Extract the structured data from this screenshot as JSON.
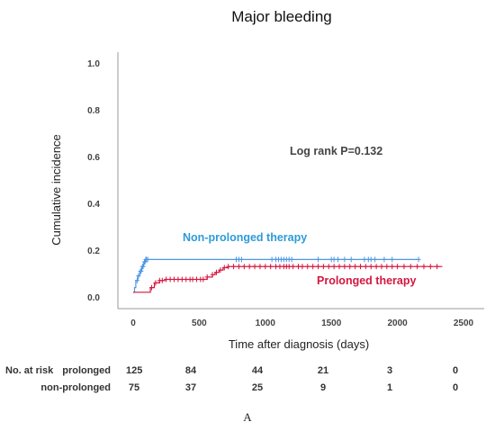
{
  "chart_data": {
    "type": "line",
    "title": "Major bleeding",
    "xlabel": "Time after diagnosis (days)",
    "ylabel": "Cumulative incidence",
    "xlim": [
      -50,
      2700
    ],
    "ylim": [
      -0.02,
      1.05
    ],
    "x_ticks": [
      0,
      500,
      1000,
      1500,
      2000,
      2500
    ],
    "y_ticks": [
      "0.0",
      "0.2",
      "0.4",
      "0.6",
      "0.8",
      "1.0"
    ],
    "y_tick_values": [
      0.0,
      0.2,
      0.4,
      0.6,
      0.8,
      1.0
    ],
    "annotation": "Log rank P=0.132",
    "grid": false,
    "series": [
      {
        "name": "Non-prolonged therapy",
        "color": "#4d97e3",
        "label_color": "#2f9bd9",
        "step_x": [
          0,
          10,
          20,
          35,
          50,
          65,
          80,
          95,
          2160
        ],
        "step_y": [
          0.02,
          0.04,
          0.07,
          0.09,
          0.11,
          0.13,
          0.15,
          0.16,
          0.16
        ],
        "censored_x": [
          30,
          40,
          55,
          60,
          70,
          75,
          85,
          90,
          95,
          100,
          110,
          780,
          800,
          820,
          1050,
          1080,
          1100,
          1120,
          1140,
          1160,
          1180,
          1200,
          1400,
          1500,
          1520,
          1550,
          1600,
          1650,
          1750,
          1780,
          1800,
          1830,
          1900,
          1960,
          2160
        ]
      },
      {
        "name": "Prolonged therapy",
        "color": "#d4173f",
        "label_color": "#d4173f",
        "step_x": [
          0,
          100,
          130,
          160,
          200,
          240,
          560,
          600,
          620,
          650,
          680,
          720,
          760,
          2340
        ],
        "step_y": [
          0.02,
          0.02,
          0.04,
          0.06,
          0.07,
          0.075,
          0.085,
          0.095,
          0.105,
          0.115,
          0.125,
          0.13,
          0.13,
          0.13
        ],
        "censored_x": [
          140,
          170,
          200,
          220,
          250,
          280,
          310,
          340,
          370,
          400,
          430,
          450,
          480,
          510,
          530,
          560,
          600,
          630,
          660,
          690,
          720,
          760,
          800,
          840,
          880,
          920,
          960,
          1000,
          1040,
          1080,
          1110,
          1140,
          1160,
          1180,
          1210,
          1250,
          1280,
          1320,
          1360,
          1400,
          1440,
          1480,
          1520,
          1560,
          1600,
          1640,
          1680,
          1720,
          1760,
          1800,
          1840,
          1880,
          1920,
          1960,
          2000,
          2050,
          2100,
          2150,
          2200,
          2250,
          2300
        ]
      }
    ]
  },
  "risk_table": {
    "title": "No. at risk",
    "rows": [
      {
        "label": "prolonged",
        "values": [
          "125",
          "84",
          "44",
          "21",
          "3",
          "0"
        ]
      },
      {
        "label": "non-prolonged",
        "values": [
          "75",
          "37",
          "25",
          "9",
          "1",
          "0"
        ]
      }
    ]
  },
  "panel_label": "A"
}
